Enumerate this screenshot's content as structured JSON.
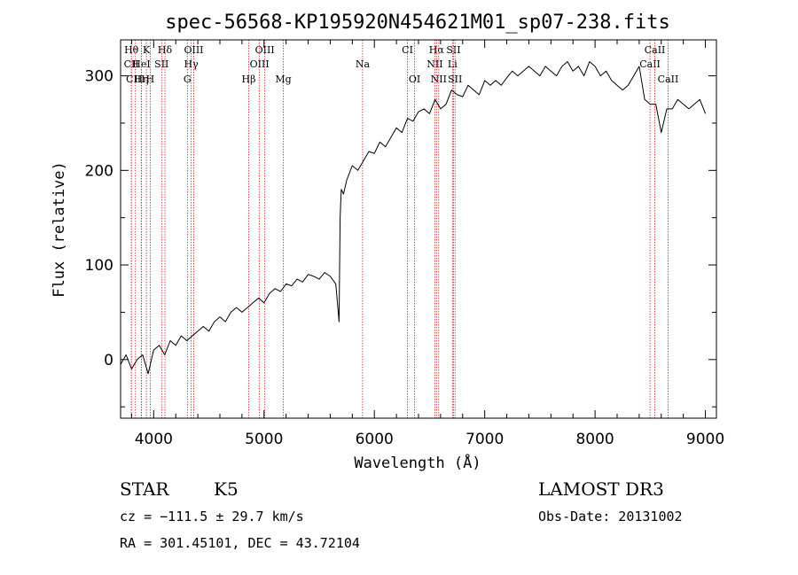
{
  "chart_data": {
    "type": "line",
    "title": "spec-56568-KP195920N454621M01_sp07-238.fits",
    "xlabel": "Wavelength (Å)",
    "ylabel": "Flux (relative)",
    "xlim": [
      3700,
      9100
    ],
    "ylim": [
      -62,
      338
    ],
    "xticks": [
      "4000",
      "5000",
      "6000",
      "7000",
      "8000",
      "9000"
    ],
    "yticks": [
      "0",
      "100",
      "200",
      "300"
    ],
    "grid": false,
    "series": [
      {
        "color": "#000000",
        "x": [
          3700,
          3750,
          3800,
          3850,
          3900,
          3950,
          4000,
          4050,
          4100,
          4150,
          4200,
          4250,
          4300,
          4350,
          4400,
          4450,
          4500,
          4550,
          4600,
          4650,
          4700,
          4750,
          4800,
          4850,
          4900,
          4950,
          5000,
          5050,
          5100,
          5150,
          5200,
          5250,
          5300,
          5350,
          5400,
          5450,
          5500,
          5550,
          5600,
          5650,
          5680,
          5690,
          5700,
          5720,
          5750,
          5800,
          5850,
          5900,
          5950,
          6000,
          6050,
          6100,
          6150,
          6200,
          6250,
          6300,
          6350,
          6400,
          6450,
          6500,
          6550,
          6600,
          6650,
          6700,
          6750,
          6800,
          6850,
          6900,
          6950,
          7000,
          7050,
          7100,
          7150,
          7200,
          7250,
          7300,
          7350,
          7400,
          7450,
          7500,
          7550,
          7600,
          7650,
          7700,
          7750,
          7800,
          7850,
          7900,
          7950,
          8000,
          8050,
          8100,
          8150,
          8200,
          8250,
          8300,
          8350,
          8400,
          8450,
          8500,
          8550,
          8600,
          8650,
          8700,
          8750,
          8800,
          8850,
          8900,
          8950,
          9000
        ],
        "y": [
          -5,
          5,
          -10,
          0,
          5,
          -15,
          10,
          15,
          5,
          20,
          15,
          25,
          20,
          25,
          30,
          35,
          30,
          40,
          45,
          40,
          50,
          55,
          50,
          55,
          60,
          65,
          60,
          70,
          75,
          72,
          80,
          78,
          85,
          82,
          90,
          88,
          85,
          92,
          88,
          80,
          40,
          150,
          180,
          175,
          190,
          205,
          200,
          210,
          220,
          218,
          230,
          225,
          235,
          245,
          240,
          255,
          252,
          262,
          265,
          260,
          275,
          265,
          270,
          285,
          280,
          278,
          290,
          285,
          280,
          295,
          290,
          295,
          290,
          298,
          305,
          300,
          305,
          310,
          305,
          300,
          310,
          305,
          300,
          310,
          315,
          305,
          310,
          300,
          315,
          310,
          300,
          305,
          295,
          290,
          285,
          290,
          300,
          310,
          275,
          270,
          270,
          240,
          265,
          265,
          275,
          270,
          265,
          270,
          275,
          260
        ]
      }
    ],
    "spectral_lines": [
      {
        "label": "Hθ",
        "wl": 3798,
        "row": 0
      },
      {
        "label": "CII",
        "wl": 3798,
        "row": 1
      },
      {
        "label": "CIII",
        "wl": 3835,
        "row": 2
      },
      {
        "label": "K",
        "wl": 3934,
        "row": 0
      },
      {
        "label": "HeI",
        "wl": 3889,
        "row": 1
      },
      {
        "label": "Hη",
        "wl": 3889,
        "row": 2
      },
      {
        "label": "H",
        "wl": 3969,
        "row": 2
      },
      {
        "label": "SII",
        "wl": 4072,
        "row": 1
      },
      {
        "label": "Hδ",
        "wl": 4102,
        "row": 0
      },
      {
        "label": "OIII",
        "wl": 4363,
        "row": 0
      },
      {
        "label": "Hγ",
        "wl": 4340,
        "row": 1
      },
      {
        "label": "G",
        "wl": 4305,
        "row": 2
      },
      {
        "label": "Hβ",
        "wl": 4861,
        "row": 2
      },
      {
        "label": "OIII",
        "wl": 5007,
        "row": 0
      },
      {
        "label": "OIII",
        "wl": 4959,
        "row": 1
      },
      {
        "label": "Mg",
        "wl": 5175,
        "row": 2
      },
      {
        "label": "Na",
        "wl": 5893,
        "row": 1
      },
      {
        "label": "CI",
        "wl": 6300,
        "row": 0
      },
      {
        "label": "OI",
        "wl": 6364,
        "row": 2
      },
      {
        "label": "Hα",
        "wl": 6563,
        "row": 0
      },
      {
        "label": "NII",
        "wl": 6548,
        "row": 1
      },
      {
        "label": "NII",
        "wl": 6583,
        "row": 2
      },
      {
        "label": "SII",
        "wl": 6717,
        "row": 0
      },
      {
        "label": "Li",
        "wl": 6708,
        "row": 1
      },
      {
        "label": "SII",
        "wl": 6731,
        "row": 2
      },
      {
        "label": "CaII",
        "wl": 8498,
        "row": 1
      },
      {
        "label": "CaII",
        "wl": 8542,
        "row": 0
      },
      {
        "label": "CaII",
        "wl": 8662,
        "row": 2
      }
    ]
  },
  "info": {
    "star_class": "STAR",
    "subclass": "K5",
    "survey": "LAMOST DR3",
    "cz_text": "cz = −111.5 ± 29.7 km/s",
    "obs_date_text": "Obs-Date: 20131002",
    "radec_text": "RA = 301.45101, DEC =  43.72104"
  }
}
